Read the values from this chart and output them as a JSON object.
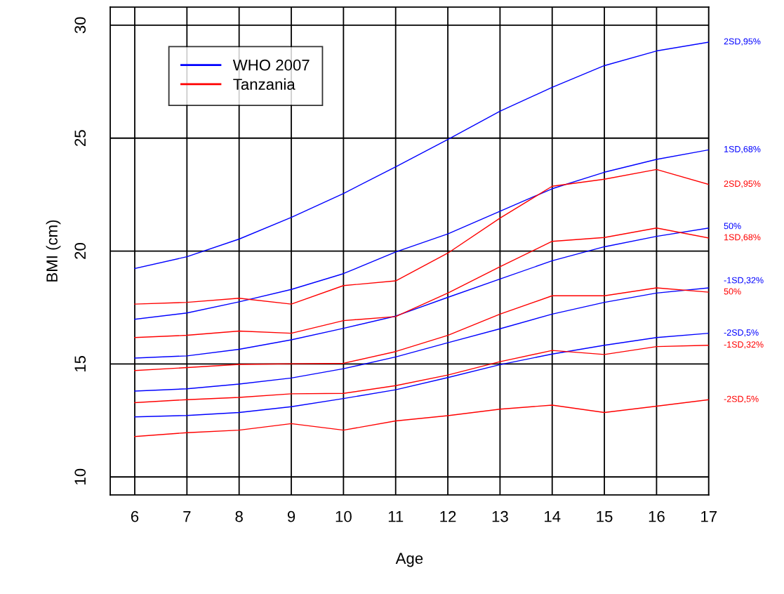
{
  "chart_data": {
    "type": "line",
    "xlabel": "Age",
    "ylabel": "BMI (cm)",
    "x": [
      6,
      7,
      8,
      9,
      10,
      11,
      12,
      13,
      14,
      15,
      16,
      17
    ],
    "xlim": [
      5.53,
      17
    ],
    "ylim": [
      9.2,
      30.8
    ],
    "xticks": [
      6,
      7,
      8,
      9,
      10,
      11,
      12,
      13,
      14,
      15,
      16,
      17
    ],
    "yticks": [
      10,
      15,
      20,
      25,
      30
    ],
    "grid": true,
    "legend": "top left",
    "marker": "none",
    "line_style": "solid",
    "annotations": [
      "2SD,95%",
      "1SD,68%",
      "50%",
      "-1SD,32%",
      "-2SD,5%",
      "2SD,95%",
      "1SD,68%",
      "50%",
      "-1SD,32%",
      "-2SD,5%"
    ],
    "series": [
      {
        "name": "WHO 2007",
        "color": "#0000ff",
        "values": [
          19.23,
          19.75,
          20.53,
          21.49,
          22.55,
          23.73,
          24.94,
          26.19,
          27.25,
          28.21,
          28.86,
          29.25
        ]
      },
      {
        "color": "#0000ff",
        "values": [
          16.98,
          17.26,
          17.75,
          18.3,
          19.0,
          19.96,
          20.76,
          21.76,
          22.76,
          23.49,
          24.06,
          24.48
        ]
      },
      {
        "color": "#0000ff",
        "values": [
          15.26,
          15.36,
          15.65,
          16.07,
          16.58,
          17.12,
          17.95,
          18.76,
          19.57,
          20.19,
          20.65,
          21.02
        ]
      },
      {
        "color": "#0000ff",
        "values": [
          13.8,
          13.9,
          14.11,
          14.38,
          14.79,
          15.31,
          15.94,
          16.56,
          17.21,
          17.73,
          18.14,
          18.37
        ]
      },
      {
        "color": "#0000ff",
        "values": [
          12.66,
          12.72,
          12.85,
          13.11,
          13.47,
          13.86,
          14.4,
          14.97,
          15.44,
          15.83,
          16.17,
          16.36
        ]
      },
      {
        "name": "Tanzania",
        "color": "#ff0000",
        "values": [
          17.65,
          17.73,
          17.91,
          17.65,
          18.47,
          18.68,
          19.91,
          21.46,
          22.87,
          23.18,
          23.61,
          22.95
        ]
      },
      {
        "color": "#ff0000",
        "values": [
          16.17,
          16.27,
          16.46,
          16.36,
          16.92,
          17.1,
          18.14,
          19.31,
          20.43,
          20.6,
          21.02,
          20.58
        ]
      },
      {
        "color": "#ff0000",
        "values": [
          14.71,
          14.84,
          14.98,
          15.01,
          15.03,
          15.55,
          16.27,
          17.21,
          18.02,
          18.02,
          18.37,
          18.18
        ]
      },
      {
        "color": "#ff0000",
        "values": [
          13.29,
          13.42,
          13.52,
          13.68,
          13.7,
          14.04,
          14.51,
          15.1,
          15.6,
          15.42,
          15.77,
          15.83
        ]
      },
      {
        "color": "#ff0000",
        "values": [
          11.79,
          11.96,
          12.07,
          12.36,
          12.07,
          12.48,
          12.71,
          13.0,
          13.18,
          12.85,
          13.13,
          13.42
        ]
      }
    ]
  }
}
